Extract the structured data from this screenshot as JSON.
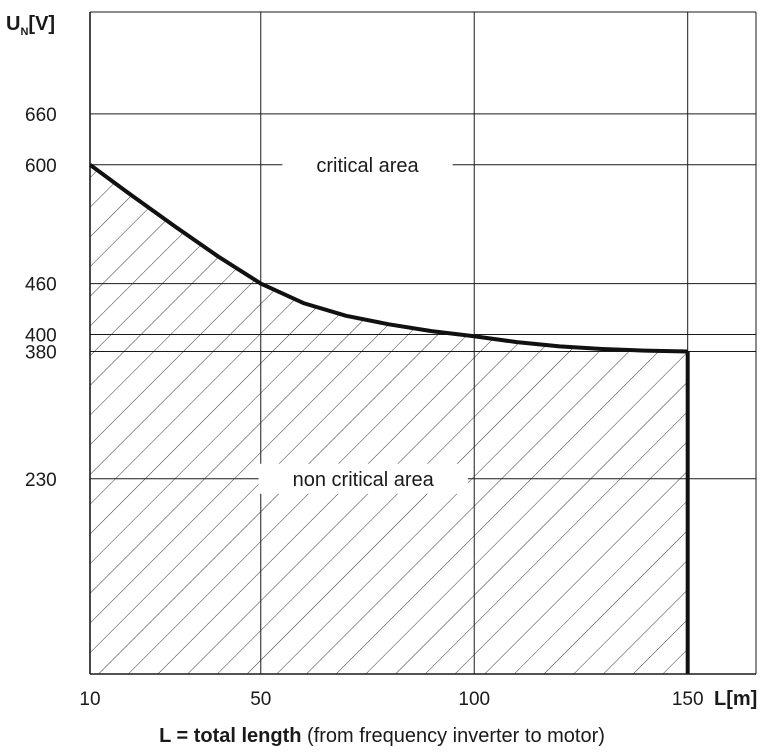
{
  "chart_data": {
    "type": "line",
    "ylabel_main": "U",
    "ylabel_sub": "N",
    "ylabel_unit": "[V]",
    "xlabel": "L[m]",
    "caption_bold": "L = total length",
    "caption_rest": " (from frequency inverter to motor)",
    "x_ticks": [
      10,
      50,
      100,
      150
    ],
    "y_ticks": [
      230,
      380,
      400,
      460,
      600,
      660
    ],
    "xlim": [
      10,
      166
    ],
    "ylim": [
      0,
      780
    ],
    "grid": true,
    "series": [
      {
        "x": [
          10,
          20,
          30,
          40,
          50,
          60,
          70,
          80,
          90,
          100,
          110,
          120,
          130,
          140,
          150
        ],
        "y": [
          600,
          563,
          527,
          492,
          460,
          437,
          422,
          412,
          404,
          398,
          391,
          386,
          383,
          381,
          380
        ]
      }
    ],
    "drop_at_x": 150,
    "annotations": {
      "upper": "critical area",
      "lower": "non critical area"
    }
  }
}
